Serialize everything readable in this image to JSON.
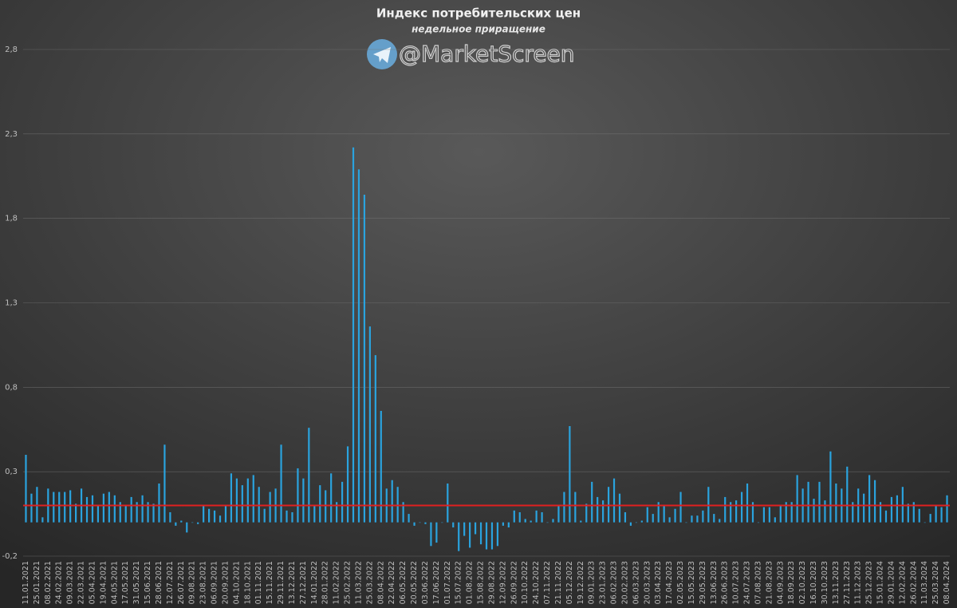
{
  "chart_data": {
    "type": "bar",
    "title": "Индекс потребительских цен",
    "subtitle": "недельное приращение",
    "watermark": "@MarketScreen",
    "color": "#2aa3de",
    "hline": {
      "value": 0.1,
      "color": "#e02020"
    },
    "grid": true,
    "ylim": [
      -0.2,
      2.8
    ],
    "yticks": [
      {
        "value": -0.2,
        "label": "-0,2"
      },
      {
        "value": 0.3,
        "label": "0,3"
      },
      {
        "value": 0.8,
        "label": "0,8"
      },
      {
        "value": 1.3,
        "label": "1,3"
      },
      {
        "value": 1.8,
        "label": "1,8"
      },
      {
        "value": 2.3,
        "label": "2,3"
      },
      {
        "value": 2.8,
        "label": "2,8"
      }
    ],
    "categories": [
      "11.01.2021",
      null,
      "25.01.2021",
      null,
      "08.02.2021",
      null,
      "24.02.2021",
      null,
      "09.03.2021",
      null,
      "22.03.2021",
      null,
      "05.04.2021",
      null,
      "19.04.2021",
      null,
      "04.05.2021",
      null,
      "17.05.2021",
      null,
      "31.05.2021",
      null,
      "15.06.2021",
      null,
      "28.06.2021",
      null,
      "12.07.2021",
      null,
      "26.07.2021",
      null,
      "09.08.2021",
      null,
      "23.08.2021",
      null,
      "06.09.2021",
      null,
      "20.09.2021",
      null,
      "04.10.2021",
      null,
      "18.10.2021",
      null,
      "01.11.2021",
      null,
      "15.11.2021",
      null,
      "29.11.2021",
      null,
      "13.12.2021",
      null,
      "27.12.2021",
      null,
      "14.01.2022",
      null,
      "28.01.2022",
      null,
      "11.02.2022",
      null,
      "25.02.2022",
      null,
      "11.03.2022",
      null,
      "25.03.2022",
      null,
      "08.04.2022",
      null,
      "22.04.2022",
      null,
      "06.05.2022",
      null,
      "20.05.2022",
      null,
      "03.06.2022",
      null,
      "17.06.2022",
      null,
      "01.07.2022",
      null,
      "15.07.2022",
      null,
      "01.08.2022",
      null,
      "15.08.2022",
      null,
      "29.08.2022",
      null,
      "12.09.2022",
      null,
      "26.09.2022",
      null,
      "10.10.2022",
      null,
      "24.10.2022",
      null,
      "07.11.2022",
      null,
      "21.11.2022",
      null,
      "05.12.2022",
      null,
      "19.12.2022",
      null,
      "09.01.2023",
      null,
      "23.01.2023",
      null,
      "06.02.2023",
      null,
      "20.02.2023",
      null,
      "06.03.2023",
      null,
      "20.03.2023",
      null,
      "03.04.2023",
      null,
      "17.04.2023",
      null,
      "02.05.2023",
      null,
      "15.05.2023",
      null,
      "29.05.2023",
      null,
      "13.06.2023",
      null,
      "26.06.2023",
      null,
      "10.07.2023",
      null,
      "24.07.2023",
      null,
      "07.08.2023",
      null,
      "21.08.2023",
      null,
      "04.09.2023",
      null,
      "18.09.2023",
      null,
      "02.10.2023",
      null,
      "16.10.2023",
      null,
      "30.10.2023",
      null,
      "13.11.2023",
      null,
      "27.11.2023",
      null,
      "11.12.2023",
      null,
      "25.12.2023",
      null,
      "15.01.2024",
      null,
      "29.01.2024",
      null,
      "12.02.2024",
      null,
      "26.02.2024",
      null,
      "11.03.2024",
      null,
      "25.03.2024",
      null,
      "08.04.2024"
    ],
    "values": [
      0.4,
      0.17,
      0.21,
      0.03,
      0.2,
      0.18,
      0.18,
      0.18,
      0.19,
      0.11,
      0.2,
      0.15,
      0.16,
      0.1,
      0.17,
      0.18,
      0.16,
      0.12,
      0.1,
      0.15,
      0.12,
      0.16,
      0.12,
      0.11,
      0.23,
      0.46,
      0.06,
      -0.02,
      0.01,
      -0.06,
      0.0,
      -0.01,
      0.1,
      0.08,
      0.07,
      0.04,
      0.1,
      0.29,
      0.26,
      0.22,
      0.26,
      0.28,
      0.21,
      0.08,
      0.18,
      0.2,
      0.46,
      0.07,
      0.06,
      0.32,
      0.26,
      0.56,
      0.1,
      0.22,
      0.19,
      0.29,
      0.12,
      0.24,
      0.45,
      2.22,
      2.09,
      1.94,
      1.16,
      0.99,
      0.66,
      0.2,
      0.25,
      0.21,
      0.12,
      0.05,
      -0.02,
      0.0,
      -0.01,
      -0.14,
      -0.12,
      0.0,
      0.23,
      -0.03,
      -0.17,
      -0.08,
      -0.15,
      -0.07,
      -0.13,
      -0.16,
      -0.16,
      -0.14,
      -0.02,
      -0.03,
      0.07,
      0.06,
      0.02,
      0.01,
      0.07,
      0.06,
      0.0,
      0.02,
      0.1,
      0.18,
      0.57,
      0.18,
      0.01,
      0.11,
      0.24,
      0.15,
      0.13,
      0.21,
      0.26,
      0.17,
      0.06,
      -0.02,
      0.0,
      0.01,
      0.09,
      0.05,
      0.12,
      0.1,
      0.03,
      0.08,
      0.18,
      0.0,
      0.04,
      0.04,
      0.07,
      0.21,
      0.05,
      0.02,
      0.15,
      0.12,
      0.13,
      0.18,
      0.23,
      0.12,
      0.0,
      0.09,
      0.09,
      0.03,
      0.1,
      0.12,
      0.12,
      0.28,
      0.2,
      0.24,
      0.14,
      0.24,
      0.13,
      0.42,
      0.23,
      0.2,
      0.33,
      0.12,
      0.2,
      0.17,
      0.28,
      0.25,
      0.12,
      0.07,
      0.15,
      0.16,
      0.21,
      0.11,
      0.12,
      0.08,
      0.0,
      0.05,
      0.1,
      0.09,
      0.16
    ]
  }
}
